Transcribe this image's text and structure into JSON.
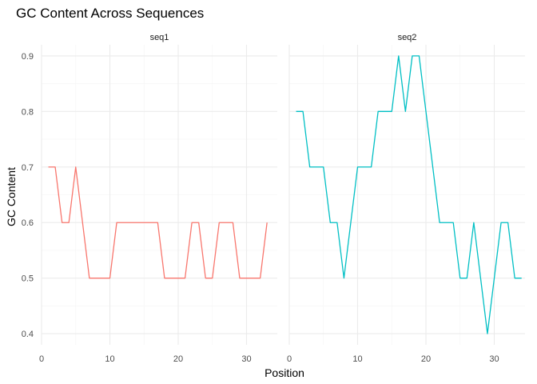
{
  "chart_data": {
    "type": "line",
    "title": "GC Content Across Sequences",
    "xlabel": "Position",
    "ylabel": "GC Content",
    "xlim": [
      0,
      34.5
    ],
    "ylim": [
      0.38,
      0.92
    ],
    "x_ticks": [
      0,
      10,
      20,
      30
    ],
    "y_ticks": [
      0.4,
      0.5,
      0.6,
      0.7,
      0.8,
      0.9
    ],
    "grid": true,
    "facets": [
      {
        "label": "seq1",
        "color": "#F8766D",
        "x": [
          1,
          2,
          3,
          4,
          5,
          6,
          7,
          8,
          9,
          10,
          11,
          12,
          13,
          14,
          15,
          16,
          17,
          18,
          19,
          20,
          21,
          22,
          23,
          24,
          25,
          26,
          27,
          28,
          29,
          30,
          31,
          32,
          33
        ],
        "y": [
          0.7,
          0.7,
          0.6,
          0.6,
          0.7,
          0.6,
          0.5,
          0.5,
          0.5,
          0.5,
          0.6,
          0.6,
          0.6,
          0.6,
          0.6,
          0.6,
          0.6,
          0.5,
          0.5,
          0.5,
          0.5,
          0.6,
          0.6,
          0.5,
          0.5,
          0.6,
          0.6,
          0.6,
          0.5,
          0.5,
          0.5,
          0.5,
          0.6
        ]
      },
      {
        "label": "seq2",
        "color": "#00BFC4",
        "x": [
          1,
          2,
          3,
          4,
          5,
          6,
          7,
          8,
          9,
          10,
          11,
          12,
          13,
          14,
          15,
          16,
          17,
          18,
          19,
          20,
          21,
          22,
          23,
          24,
          25,
          26,
          27,
          28,
          29,
          30,
          31,
          32,
          33,
          34
        ],
        "y": [
          0.8,
          0.8,
          0.7,
          0.7,
          0.7,
          0.6,
          0.6,
          0.5,
          0.6,
          0.7,
          0.7,
          0.7,
          0.8,
          0.8,
          0.8,
          0.9,
          0.8,
          0.9,
          0.9,
          0.8,
          0.7,
          0.6,
          0.6,
          0.6,
          0.5,
          0.5,
          0.6,
          0.5,
          0.4,
          0.5,
          0.6,
          0.6,
          0.5,
          0.5
        ]
      }
    ]
  }
}
